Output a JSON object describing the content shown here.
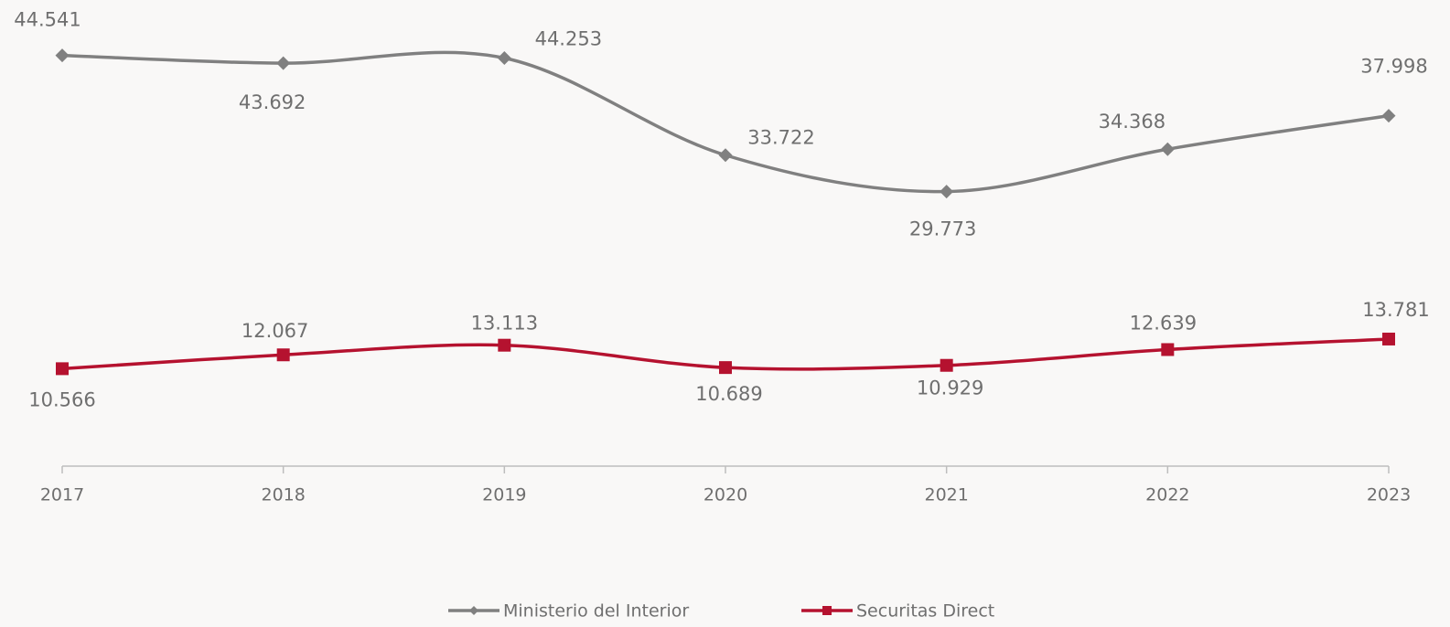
{
  "chart_data": {
    "type": "line",
    "categories": [
      "2017",
      "2018",
      "2019",
      "2020",
      "2021",
      "2022",
      "2023"
    ],
    "series": [
      {
        "name": "Ministerio del Interior",
        "color": "#808080",
        "marker": "diamond",
        "values": [
          44541,
          43692,
          44253,
          33722,
          29773,
          34368,
          37998
        ],
        "value_labels": [
          "44.541",
          "43.692",
          "44.253",
          "33.722",
          "29.773",
          "34.368",
          "37.998"
        ]
      },
      {
        "name": "Securitas Direct",
        "color": "#b5122f",
        "marker": "square",
        "values": [
          10566,
          12067,
          13113,
          10689,
          10929,
          12639,
          13781
        ],
        "value_labels": [
          "10.566",
          "12.067",
          "13.113",
          "10.689",
          "10.929",
          "12.639",
          "13.781"
        ]
      }
    ],
    "ylim": [
      0,
      50000
    ],
    "smooth": true,
    "legend": "bottom"
  }
}
